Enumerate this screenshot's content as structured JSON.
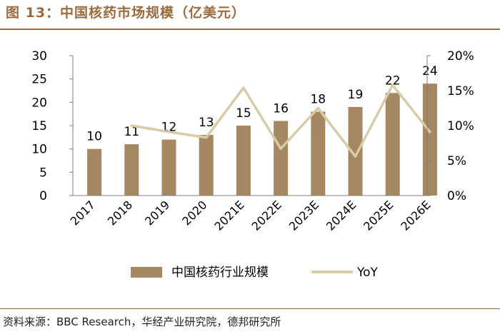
{
  "figure": {
    "title": "图 13：中国核药市场规模（亿美元）",
    "source": "资料来源：BBC Research，华经产业研究院，德邦研究所"
  },
  "chart_data": {
    "type": "bar",
    "categories": [
      "2017",
      "2018",
      "2019",
      "2020",
      "2021E",
      "2022E",
      "2023E",
      "2024E",
      "2025E",
      "2026E"
    ],
    "series": [
      {
        "name": "中国核药行业规模",
        "type": "bar",
        "axis": "left",
        "color": "#a58762",
        "values": [
          10,
          11,
          12,
          13,
          15,
          16,
          18,
          19,
          22,
          24
        ],
        "labels": [
          "10",
          "11",
          "12",
          "13",
          "15",
          "16",
          "18",
          "19",
          "22",
          "24"
        ]
      },
      {
        "name": "YoY",
        "type": "line",
        "axis": "right",
        "color": "#d9cba6",
        "values": [
          null,
          10.0,
          9.1,
          8.3,
          15.4,
          6.7,
          12.5,
          5.6,
          15.8,
          9.1
        ]
      }
    ],
    "y_left": {
      "min": 0,
      "max": 30,
      "ticks": [
        "0",
        "5",
        "10",
        "15",
        "20",
        "25",
        "30"
      ]
    },
    "y_right": {
      "min": 0,
      "max": 20,
      "ticks": [
        "0%",
        "5%",
        "10%",
        "15%",
        "20%"
      ]
    },
    "grid": false,
    "legend_position": "bottom"
  }
}
